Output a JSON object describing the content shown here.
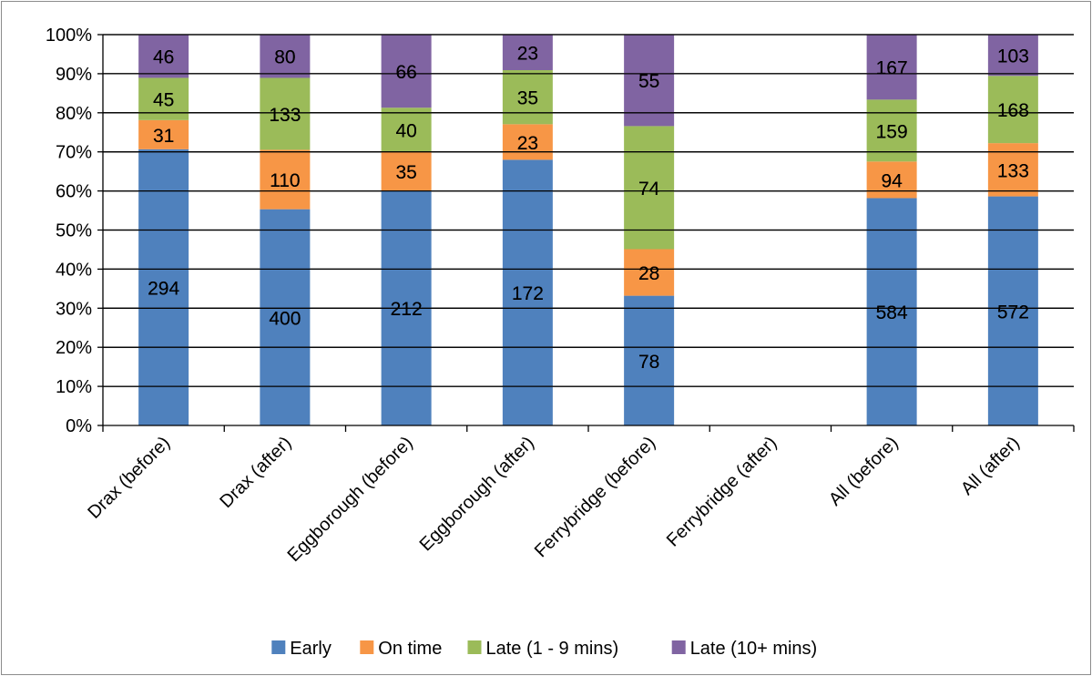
{
  "chart_data": {
    "type": "bar",
    "stacked": "percent",
    "categories": [
      "Drax (before)",
      "Drax (after)",
      "Eggborough (before)",
      "Eggborough (after)",
      "Ferrybridge (before)",
      "Ferrybridge (after)",
      "All (before)",
      "All (after)"
    ],
    "series": [
      {
        "name": "Early",
        "color": "#4F81BD",
        "values": [
          294,
          400,
          212,
          172,
          78,
          null,
          584,
          572
        ]
      },
      {
        "name": "On time",
        "color": "#F79646",
        "values": [
          31,
          110,
          35,
          23,
          28,
          null,
          94,
          133
        ]
      },
      {
        "name": "Late (1 - 9 mins)",
        "color": "#9BBB59",
        "values": [
          45,
          133,
          40,
          35,
          74,
          null,
          159,
          168
        ]
      },
      {
        "name": "Late (10+ mins)",
        "color": "#8064A2",
        "values": [
          46,
          80,
          66,
          23,
          55,
          null,
          167,
          103
        ]
      }
    ],
    "y_ticks": [
      "0%",
      "10%",
      "20%",
      "30%",
      "40%",
      "50%",
      "60%",
      "70%",
      "80%",
      "90%",
      "100%"
    ],
    "ylim": [
      0,
      100
    ],
    "grid": true,
    "legend_position": "bottom"
  }
}
